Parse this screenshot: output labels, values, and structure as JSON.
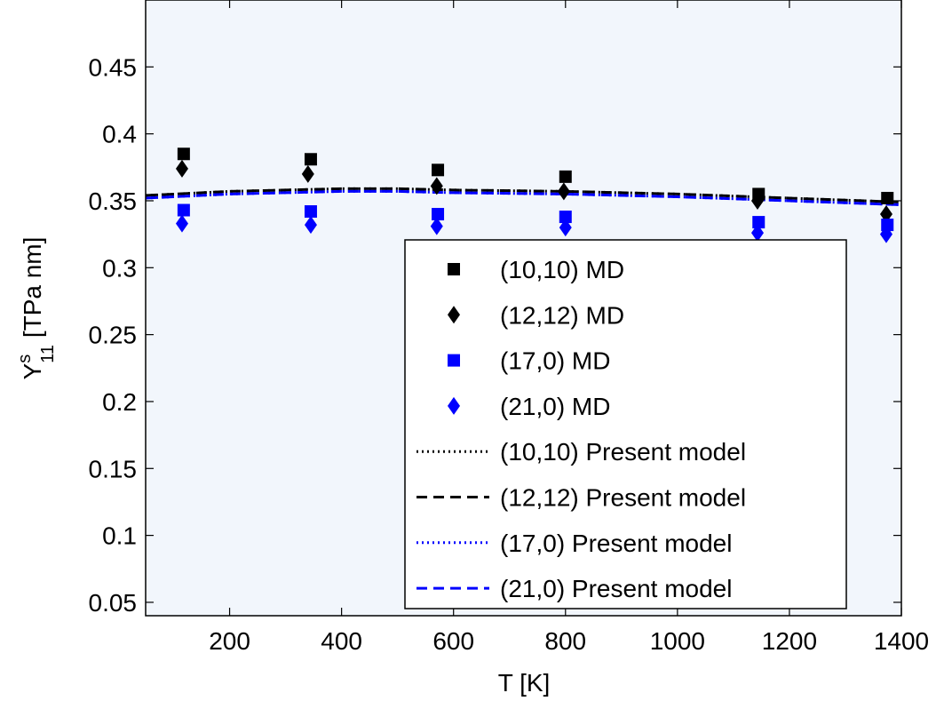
{
  "chart_data": {
    "type": "scatter",
    "xlabel": "T [K]",
    "ylabel": {
      "base": "Y",
      "superscript": "s",
      "subscript": "11",
      "unit": " [TPa nm]"
    },
    "xlim": [
      50,
      1400
    ],
    "ylim": [
      0.04,
      0.5
    ],
    "xticks": [
      200,
      400,
      600,
      800,
      1000,
      1200,
      1400
    ],
    "xtick_labels": [
      "200",
      "400",
      "600",
      "800",
      "1000",
      "1200",
      "1400"
    ],
    "yticks": [
      0.05,
      0.1,
      0.15,
      0.2,
      0.25,
      0.3,
      0.35,
      0.4,
      0.45
    ],
    "ytick_labels": [
      "0.05",
      "0.1",
      "0.15",
      "0.2",
      "0.25",
      "0.3",
      "0.35",
      "0.4",
      "0.45"
    ],
    "grid": false,
    "legend_position": "lower-right",
    "series": [
      {
        "name": "(10,10) MD",
        "kind": "marker",
        "marker": "square",
        "color": "#000000",
        "x": [
          118,
          345,
          572,
          800,
          1145,
          1375
        ],
        "y": [
          0.385,
          0.381,
          0.373,
          0.368,
          0.355,
          0.352
        ]
      },
      {
        "name": "(12,12) MD",
        "kind": "marker",
        "marker": "diamond",
        "color": "#000000",
        "x": [
          115,
          340,
          570,
          797,
          1143,
          1373
        ],
        "y": [
          0.374,
          0.37,
          0.361,
          0.357,
          0.35,
          0.34
        ]
      },
      {
        "name": "(17,0) MD",
        "kind": "marker",
        "marker": "square",
        "color": "#0000ff",
        "x": [
          118,
          345,
          572,
          800,
          1145,
          1375
        ],
        "y": [
          0.343,
          0.342,
          0.34,
          0.338,
          0.334,
          0.332
        ]
      },
      {
        "name": "(21,0) MD",
        "kind": "marker",
        "marker": "diamond",
        "color": "#0000ff",
        "x": [
          115,
          345,
          570,
          800,
          1143,
          1373
        ],
        "y": [
          0.333,
          0.332,
          0.331,
          0.33,
          0.326,
          0.325
        ]
      },
      {
        "name": "(10,10) Present model",
        "kind": "line",
        "dash": "dotted",
        "color": "#000000",
        "x": [
          50,
          200,
          400,
          500,
          600,
          800,
          1000,
          1200,
          1400
        ],
        "y": [
          0.354,
          0.357,
          0.359,
          0.359,
          0.358,
          0.357,
          0.355,
          0.352,
          0.349
        ]
      },
      {
        "name": "(12,12) Present model",
        "kind": "line",
        "dash": "dashed",
        "color": "#000000",
        "x": [
          50,
          200,
          400,
          500,
          600,
          800,
          1000,
          1200,
          1400
        ],
        "y": [
          0.354,
          0.357,
          0.359,
          0.359,
          0.358,
          0.357,
          0.355,
          0.352,
          0.349
        ]
      },
      {
        "name": "(17,0) Present model",
        "kind": "line",
        "dash": "dotted",
        "color": "#0000ff",
        "x": [
          50,
          200,
          400,
          500,
          600,
          800,
          1000,
          1200,
          1400
        ],
        "y": [
          0.352,
          0.355,
          0.357,
          0.357,
          0.356,
          0.355,
          0.353,
          0.35,
          0.347
        ]
      },
      {
        "name": "(21,0) Present model",
        "kind": "line",
        "dash": "dashed",
        "color": "#0000ff",
        "x": [
          50,
          200,
          400,
          500,
          600,
          800,
          1000,
          1200,
          1400
        ],
        "y": [
          0.352,
          0.355,
          0.357,
          0.357,
          0.356,
          0.355,
          0.353,
          0.35,
          0.347
        ]
      }
    ],
    "colors": {
      "plot_background": "#f2f6fc",
      "axes": "#000000"
    }
  }
}
